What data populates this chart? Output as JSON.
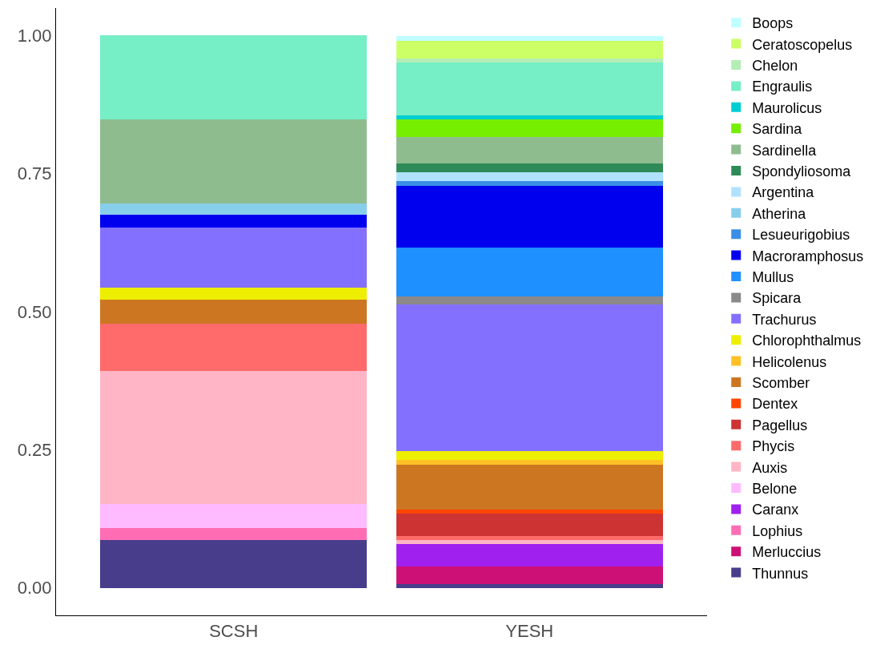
{
  "chart_data": {
    "type": "bar",
    "stacked": true,
    "categories": [
      "SCSH",
      "YESH"
    ],
    "ylim": [
      -0.05,
      1.05
    ],
    "yticks": [
      {
        "value": 0,
        "label": "0.00"
      },
      {
        "value": 0.25,
        "label": "0.25"
      },
      {
        "value": 0.5,
        "label": "0.50"
      },
      {
        "value": 0.75,
        "label": "0.75"
      },
      {
        "value": 1,
        "label": "1.00"
      }
    ],
    "grid": false,
    "legend": "right",
    "series": [
      {
        "name": "Thunnus",
        "color": "#483d8b",
        "values": [
          0.086,
          0.007
        ]
      },
      {
        "name": "Merluccius",
        "color": "#cd1076",
        "values": [
          0,
          0.031
        ]
      },
      {
        "name": "Lophius",
        "color": "#ff6eb4",
        "values": [
          0.022,
          0
        ]
      },
      {
        "name": "Caranx",
        "color": "#a020f0",
        "values": [
          0,
          0.041
        ]
      },
      {
        "name": "Belone",
        "color": "#ffbbff",
        "values": [
          0.044,
          0
        ]
      },
      {
        "name": "Auxis",
        "color": "#ffb5c5",
        "values": [
          0.24,
          0.008
        ]
      },
      {
        "name": "Phycis",
        "color": "#ff6a6a",
        "values": [
          0.086,
          0.007
        ]
      },
      {
        "name": "Pagellus",
        "color": "#cd3333",
        "values": [
          0,
          0.041
        ]
      },
      {
        "name": "Dentex",
        "color": "#ff4500",
        "values": [
          0,
          0.007
        ]
      },
      {
        "name": "Scomber",
        "color": "#cd7621",
        "values": [
          0.044,
          0.081
        ]
      },
      {
        "name": "Helicolenus",
        "color": "#ffc125",
        "values": [
          0,
          0.008
        ]
      },
      {
        "name": "Chlorophthalmus",
        "color": "#eeee00",
        "values": [
          0.021,
          0.016
        ]
      },
      {
        "name": "Trachurus",
        "color": "#8470ff",
        "values": [
          0.11,
          0.266
        ]
      },
      {
        "name": "Spicara",
        "color": "#8b8989",
        "values": [
          0,
          0.015
        ]
      },
      {
        "name": "Mullus",
        "color": "#1e90ff",
        "values": [
          0,
          0.088
        ]
      },
      {
        "name": "Macroramphosus",
        "color": "#0000ee",
        "values": [
          0.022,
          0.112
        ]
      },
      {
        "name": "Lesueurigobius",
        "color": "#3a8ee6",
        "values": [
          0,
          0.009
        ]
      },
      {
        "name": "Atherina",
        "color": "#87ceeb",
        "values": [
          0.021,
          0
        ]
      },
      {
        "name": "Argentina",
        "color": "#b0e2ff",
        "values": [
          0,
          0.015
        ]
      },
      {
        "name": "Spondyliosoma",
        "color": "#2e8b57",
        "values": [
          0,
          0.016
        ]
      },
      {
        "name": "Sardinella",
        "color": "#8fbc8f",
        "values": [
          0.153,
          0.049
        ]
      },
      {
        "name": "Sardina",
        "color": "#76ee00",
        "values": [
          0,
          0.031
        ]
      },
      {
        "name": "Maurolicus",
        "color": "#00ced1",
        "values": [
          0,
          0.008
        ]
      },
      {
        "name": "Engraulis",
        "color": "#76eec6",
        "values": [
          0.151,
          0.096
        ]
      },
      {
        "name": "Chelon",
        "color": "#b4eeb4",
        "values": [
          0,
          0.007
        ]
      },
      {
        "name": "Ceratoscopelus",
        "color": "#ccff66",
        "values": [
          0,
          0.032
        ]
      },
      {
        "name": "Boops",
        "color": "#bfffff",
        "values": [
          0,
          0.008
        ]
      }
    ]
  }
}
